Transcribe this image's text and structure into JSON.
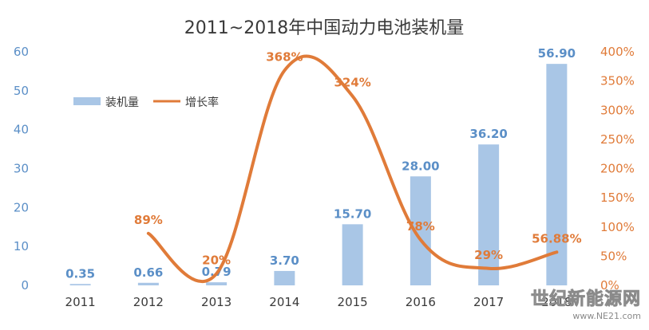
{
  "chart_data": {
    "type": "bar",
    "title": "2011~2018年中国动力电池装机量",
    "categories": [
      "2011",
      "2012",
      "2013",
      "2014",
      "2015",
      "2016",
      "2017",
      "2018"
    ],
    "series": [
      {
        "name": "装机量",
        "type": "bar",
        "axis": "left",
        "values": [
          0.35,
          0.66,
          0.79,
          3.7,
          15.7,
          28.0,
          36.2,
          56.9
        ],
        "labels": [
          "0.35",
          "0.66",
          "0.79",
          "3.70",
          "15.70",
          "28.00",
          "36.20",
          "56.90"
        ],
        "color": "#a9c6e6"
      },
      {
        "name": "增长率",
        "type": "line",
        "axis": "right",
        "values": [
          null,
          89,
          20,
          368,
          324,
          78,
          29,
          56.88
        ],
        "labels": [
          "",
          "89%",
          "20%",
          "368%",
          "324%",
          "78%",
          "29%",
          "56.88%"
        ],
        "color": "#e07b39"
      }
    ],
    "y_left": {
      "lim": [
        0,
        60
      ],
      "ticks": [
        "0",
        "10",
        "20",
        "30",
        "40",
        "50",
        "60"
      ]
    },
    "y_right": {
      "lim": [
        0,
        400
      ],
      "ticks": [
        "0%",
        "50%",
        "100%",
        "150%",
        "200%",
        "250%",
        "300%",
        "350%",
        "400%"
      ]
    },
    "grid": false,
    "legend": "upper-left"
  },
  "watermark": {
    "text": "世纪新能源网",
    "url": "www.NE21.com"
  }
}
